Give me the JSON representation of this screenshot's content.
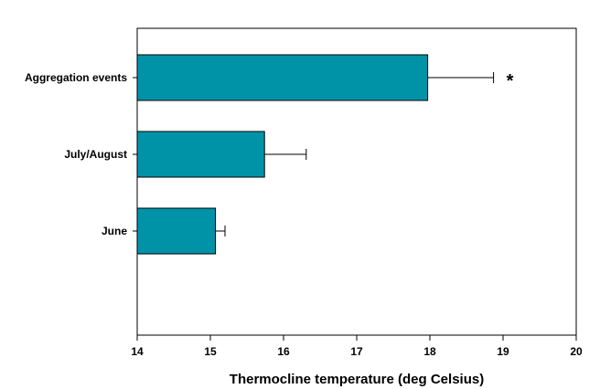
{
  "chart_data": {
    "type": "bar",
    "orientation": "horizontal",
    "categories": [
      "Aggregation events",
      "July/August",
      "June"
    ],
    "values": [
      17.97,
      15.74,
      15.07
    ],
    "errors": [
      0.9,
      0.57,
      0.13
    ],
    "annotations": [
      "*",
      "",
      ""
    ],
    "title": "",
    "xlabel": "Thermocline temperature (deg Celsius)",
    "ylabel": "",
    "xlim": [
      14,
      20
    ],
    "xticks": [
      "14",
      "15",
      "16",
      "17",
      "18",
      "19",
      "20"
    ],
    "grid": false,
    "legend": "none",
    "colors": {
      "bar_fill": "#0093A8",
      "bar_stroke": "#000000",
      "axis": "#000000"
    }
  }
}
